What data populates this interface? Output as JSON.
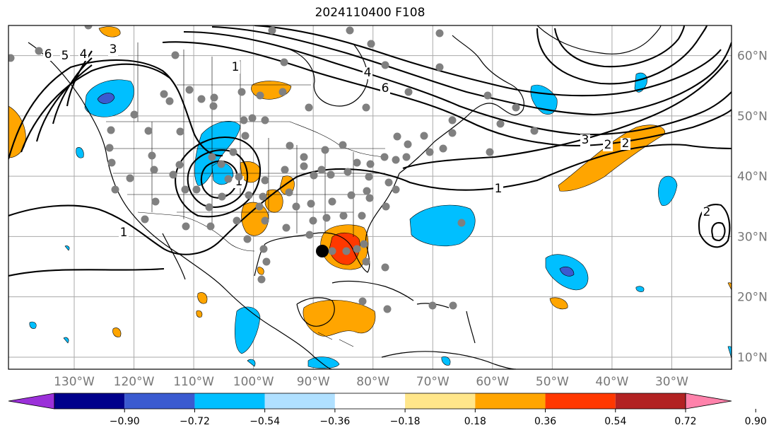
{
  "title": "2024110400 F108",
  "map": {
    "projection": "PlateCarree",
    "lon_range": [
      -141,
      -20
    ],
    "lat_range": [
      8,
      65
    ],
    "lon_ticks": [
      "130°W",
      "120°W",
      "110°W",
      "100°W",
      "90°W",
      "80°W",
      "70°W",
      "60°W",
      "50°W",
      "40°W",
      "30°W"
    ],
    "lat_ticks": [
      "60°N",
      "50°N",
      "40°N",
      "30°N",
      "20°N",
      "10°N"
    ],
    "gridlines": true,
    "marker": {
      "label": "black dot",
      "color": "#000000"
    },
    "station_color": "#808080",
    "contour_labels": [
      "1",
      "1",
      "2",
      "2",
      "3",
      "4",
      "5",
      "6",
      "4",
      "6",
      "1",
      "3",
      "2",
      "1"
    ]
  },
  "colorbar": {
    "ticks": [
      "−0.90",
      "−0.72",
      "−0.54",
      "−0.36",
      "−0.18",
      "0.18",
      "0.36",
      "0.54",
      "0.72",
      "0.90"
    ],
    "colors": [
      "#9b30d9",
      "#00008b",
      "#3a5ad0",
      "#00bfff",
      "#b0e0ff",
      "#ffffff",
      "#ffe68a",
      "#ffa500",
      "#ff3800",
      "#b22222",
      "#ff82ab"
    ],
    "extend": "both"
  }
}
